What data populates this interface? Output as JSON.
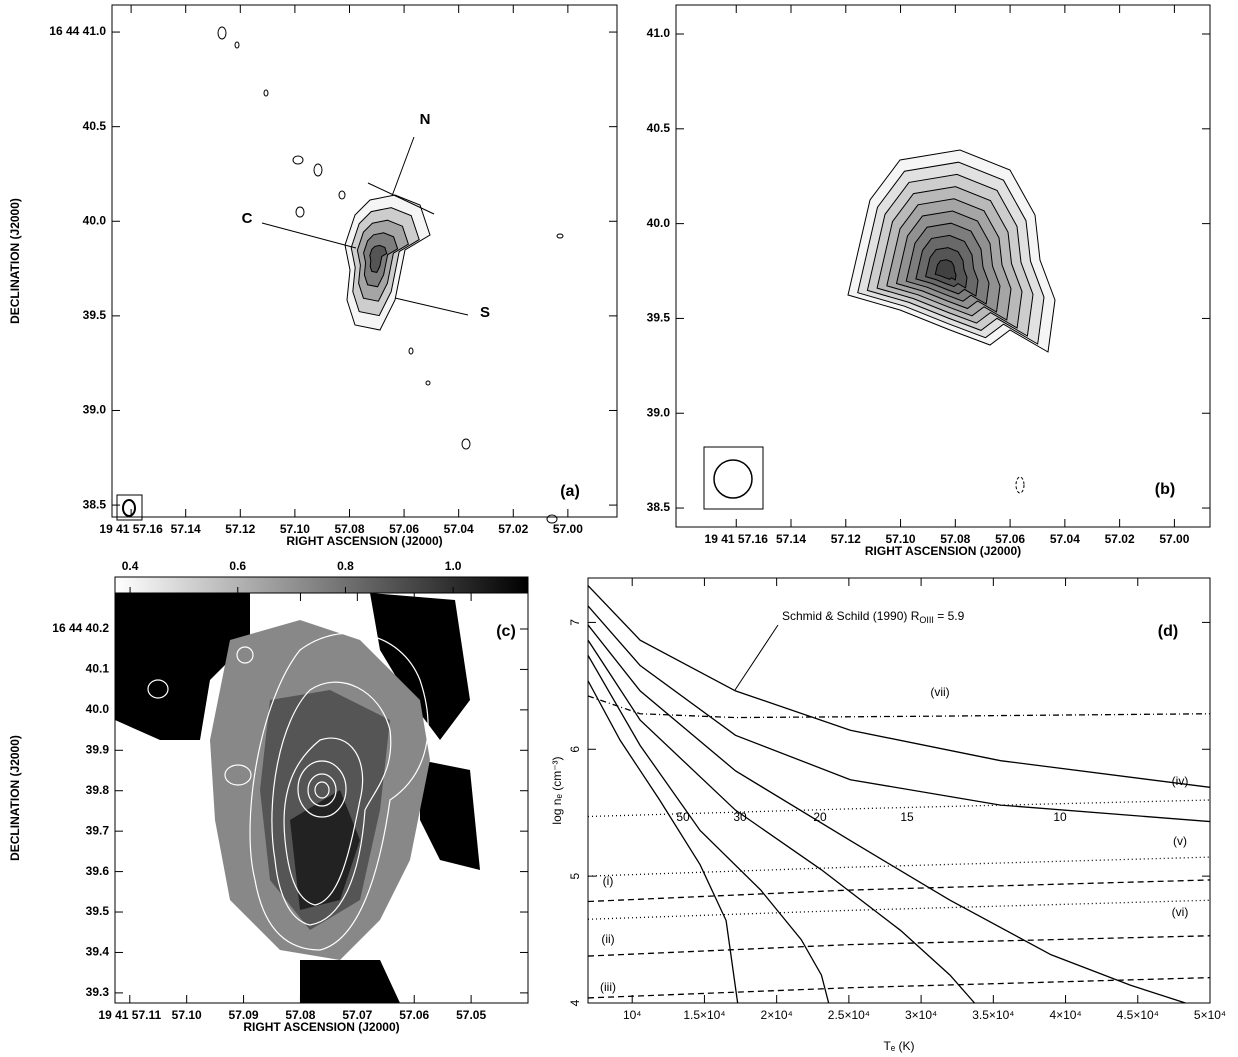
{
  "chart_data": [
    {
      "type": "contour",
      "panel_label": "(a)",
      "xlabel": "RIGHT ASCENSION (J2000)",
      "ylabel": "DECLINATION (J2000)",
      "xlim": [
        57.167,
        56.982
      ],
      "xticks": [
        {
          "value": 57.16,
          "label": "19 41 57.16"
        },
        57.14,
        57.12,
        {
          "value": 57.1,
          "label": "57.10"
        },
        57.08,
        57.06,
        57.04,
        57.02,
        {
          "value": 57,
          "label": "57.00"
        }
      ],
      "ylim": [
        38.437,
        41.143
      ],
      "yticks": [
        38.5,
        {
          "value": 39,
          "label": "39.0"
        },
        39.5,
        {
          "value": 40,
          "label": "40.0"
        },
        40.5,
        {
          "value": 41,
          "label": "16 44 41.0"
        }
      ],
      "annotations": [
        "N",
        "C",
        "S"
      ]
    },
    {
      "type": "contour",
      "panel_label": "(b)",
      "xlabel": "RIGHT ASCENSION (J2000)",
      "xlim": [
        57.182,
        56.987
      ],
      "xticks": [
        {
          "value": 57.16,
          "label": "19 41 57.16"
        },
        57.14,
        57.12,
        {
          "value": 57.1,
          "label": "57.10"
        },
        57.08,
        57.06,
        57.04,
        57.02,
        {
          "value": 57,
          "label": "57.00"
        }
      ],
      "ylim": [
        38.4,
        41.153
      ],
      "yticks": [
        38.5,
        {
          "value": 39,
          "label": "39.0"
        },
        39.5,
        {
          "value": 40,
          "label": "40.0"
        },
        40.5,
        {
          "value": 41,
          "label": "41.0"
        }
      ]
    },
    {
      "type": "image",
      "panel_label": "(c)",
      "xlabel": "RIGHT ASCENSION (J2000)",
      "ylabel": "DECLINATION (J2000)",
      "xlim": [
        57.1126,
        57.04
      ],
      "xticks": [
        {
          "value": 57.11,
          "label": "19 41 57.11"
        },
        {
          "value": 57.1,
          "label": "57.10"
        },
        57.09,
        57.08,
        57.07,
        57.06,
        57.05
      ],
      "ylim": [
        39.275,
        40.289
      ],
      "yticks": [
        39.3,
        39.4,
        39.5,
        39.6,
        39.7,
        39.8,
        39.9,
        {
          "value": 40,
          "label": "40.0"
        },
        40.1,
        {
          "value": 40.2,
          "label": "16 44 40.2"
        }
      ],
      "colorbar_lim": [
        0.372,
        1.139
      ],
      "colorbar_ticks": [
        0.4,
        0.6,
        0.8,
        {
          "value": 1,
          "label": "1.0"
        }
      ]
    },
    {
      "type": "line",
      "panel_label": "(d)",
      "xlabel": "Tₑ (K)",
      "ylabel": "log nₑ (cm⁻³)",
      "xlim": [
        6940,
        50000
      ],
      "xticks": [
        {
          "value": 10000,
          "label": "10⁴"
        },
        {
          "value": 15000,
          "label": "1.5×10⁴"
        },
        {
          "value": 20000,
          "label": "2×10⁴"
        },
        {
          "value": 25000,
          "label": "2.5×10⁴"
        },
        {
          "value": 30000,
          "label": "3×10⁴"
        },
        {
          "value": 35000,
          "label": "3.5×10⁴"
        },
        {
          "value": 40000,
          "label": "4×10⁴"
        },
        {
          "value": 45000,
          "label": "4.5×10⁴"
        },
        {
          "value": 50000,
          "label": "5×10⁴"
        }
      ],
      "ylim": [
        4,
        7.35
      ],
      "yticks": [
        4,
        5,
        6,
        7
      ],
      "annotation": {
        "text": "Schmid & Schild (1990) R",
        "sub": "OIII",
        "after": " = 5.9"
      },
      "color": "#000000",
      "series": [
        {
          "dash": "solid",
          "x": [
            6940,
            10550,
            17150,
            25100,
            35500,
            50000
          ],
          "values": [
            7.29,
            6.86,
            6.46,
            6.15,
            5.91,
            5.7
          ]
        },
        {
          "name": "10",
          "dash": "solid",
          "x": [
            6940,
            10550,
            17150,
            25100,
            35500,
            50000
          ],
          "values": [
            7.13,
            6.66,
            6.11,
            5.76,
            5.56,
            5.43
          ]
        },
        {
          "name": "15",
          "dash": "solid",
          "x": [
            6940,
            10550,
            17150,
            25100,
            32000,
            39000,
            44500,
            48300
          ],
          "values": [
            6.98,
            6.46,
            5.83,
            5.28,
            4.81,
            4.38,
            4.14,
            4
          ]
        },
        {
          "name": "20",
          "dash": "solid",
          "x": [
            6940,
            10550,
            17150,
            23100,
            28600,
            32000,
            33700
          ],
          "values": [
            6.86,
            6.23,
            5.52,
            5.05,
            4.57,
            4.22,
            4
          ]
        },
        {
          "name": "30",
          "dash": "solid",
          "x": [
            6940,
            10550,
            14700,
            18900,
            21700,
            23100,
            23600
          ],
          "values": [
            6.74,
            6.03,
            5.36,
            4.89,
            4.5,
            4.22,
            4
          ]
        },
        {
          "name": "50",
          "dash": "solid",
          "x": [
            6940,
            9170,
            11900,
            14700,
            16500,
            17300
          ],
          "values": [
            6.54,
            6.07,
            5.6,
            5.09,
            4.65,
            4
          ]
        },
        {
          "name": "(vii)",
          "dash": "dashdot",
          "x": [
            6940,
            10550,
            17150,
            30000,
            50000
          ],
          "values": [
            6.42,
            6.28,
            6.25,
            6.26,
            6.28
          ]
        },
        {
          "name": "(iv)",
          "dash": "dotted",
          "x": [
            6940,
            25000,
            50000
          ],
          "values": [
            5.47,
            5.53,
            5.6
          ]
        },
        {
          "name": "(v)",
          "dash": "dotted",
          "x": [
            6940,
            25000,
            50000
          ],
          "values": [
            5,
            5.07,
            5.15
          ]
        },
        {
          "name": "(i)",
          "dash": "dashed",
          "x": [
            6940,
            25000,
            50000
          ],
          "values": [
            4.8,
            4.89,
            4.97
          ]
        },
        {
          "name": "(vi)",
          "dash": "dotted",
          "x": [
            6940,
            25000,
            50000
          ],
          "values": [
            4.66,
            4.73,
            4.81
          ]
        },
        {
          "name": "(ii)",
          "dash": "dashed",
          "x": [
            6940,
            25000,
            50000
          ],
          "values": [
            4.37,
            4.46,
            4.53
          ]
        },
        {
          "name": "(iii)",
          "dash": "dashed",
          "x": [
            6940,
            25000,
            50000
          ],
          "values": [
            4.04,
            4.12,
            4.2
          ]
        }
      ]
    }
  ]
}
